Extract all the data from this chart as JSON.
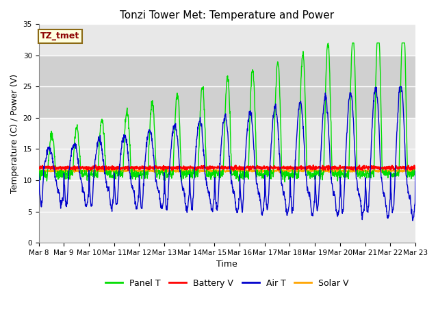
{
  "title": "Tonzi Tower Met: Temperature and Power",
  "xlabel": "Time",
  "ylabel": "Temperature (C) / Power (V)",
  "ylim": [
    0,
    35
  ],
  "n_days": 15,
  "tick_labels": [
    "Mar 8",
    "Mar 9",
    "Mar 10",
    "Mar 11",
    "Mar 12",
    "Mar 13",
    "Mar 14",
    "Mar 15",
    "Mar 16",
    "Mar 17",
    "Mar 18",
    "Mar 19",
    "Mar 20",
    "Mar 21",
    "Mar 22",
    "Mar 23"
  ],
  "shaded_region": [
    20,
    30
  ],
  "annotation_text": "TZ_tmet",
  "annotation_color": "#8B0000",
  "annotation_bg": "#FFFFE0",
  "annotation_border": "#8B6914",
  "panel_t_color": "#00DD00",
  "battery_v_color": "#FF0000",
  "air_t_color": "#0000CC",
  "solar_v_color": "#FFA500",
  "bg_color": "#FFFFFF",
  "plot_bg_color": "#E8E8E8",
  "shaded_color": "#D0D0D0",
  "grid_color": "#FFFFFF",
  "legend_labels": [
    "Panel T",
    "Battery V",
    "Air T",
    "Solar V"
  ],
  "title_fontsize": 11,
  "label_fontsize": 9,
  "tick_fontsize": 7.5
}
